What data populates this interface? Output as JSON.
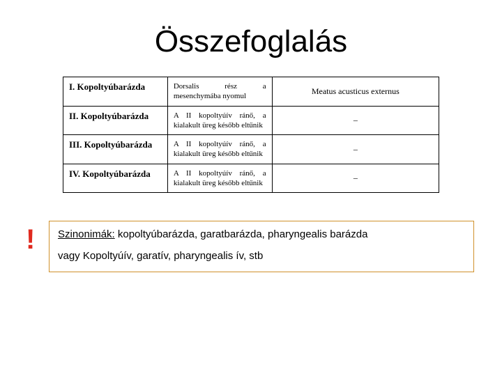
{
  "title": "Összefoglalás",
  "table": {
    "rows": [
      {
        "c1": "I. Kopoltyúbarázda",
        "c2": "Dorsalis rész a mesenchymába nyomul",
        "c3": "Meatus acusticus externus"
      },
      {
        "c1": "II. Kopoltyúbarázda",
        "c2": "A II kopoltyúív ránő, a kialakult üreg később eltűnik",
        "c3": "–"
      },
      {
        "c1": "III. Kopoltyúbarázda",
        "c2": "A II kopoltyúív ránő, a kialakult üreg később eltűnik",
        "c3": "–"
      },
      {
        "c1": "IV. Kopoltyúbarázda",
        "c2": "A II kopoltyúív ránő, a kialakult üreg később eltűnik",
        "c3": "–"
      }
    ]
  },
  "footer": {
    "bang": "!",
    "syn_label": "Szinonimák:",
    "syn_text": " kopoltyúbarázda, garatbarázda, pharyngealis barázda",
    "alt_text": "vagy Kopoltyúív, garatív, pharyngealis ív, stb"
  },
  "colors": {
    "border_box": "#d0902a",
    "bang": "#e02a1f",
    "text": "#000000",
    "bg": "#ffffff"
  }
}
